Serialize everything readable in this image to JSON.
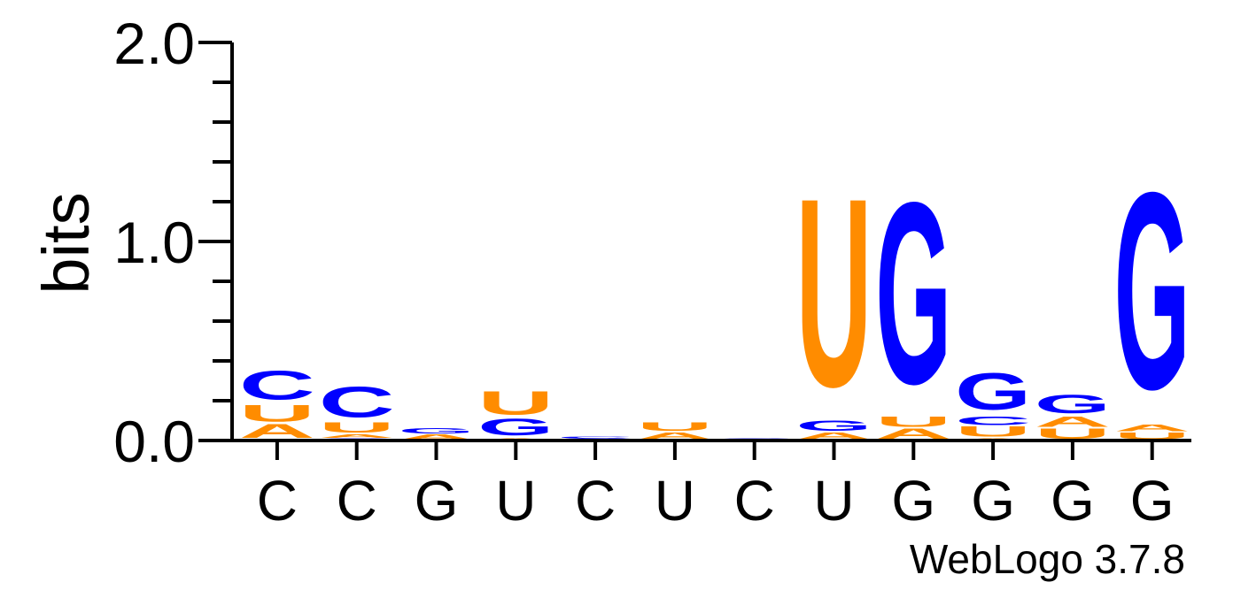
{
  "chart_data": {
    "type": "sequence-logo",
    "ylabel": "bits",
    "ylim": [
      0,
      2
    ],
    "yticks": [
      "0.0",
      "1.0",
      "2.0"
    ],
    "positions": [
      "C",
      "C",
      "G",
      "U",
      "C",
      "U",
      "C",
      "U",
      "G",
      "G",
      "G",
      "G"
    ],
    "stacks": [
      [
        {
          "letter": "A",
          "bits": 0.08
        },
        {
          "letter": "U",
          "bits": 0.1
        },
        {
          "letter": "C",
          "bits": 0.17
        }
      ],
      [
        {
          "letter": "G",
          "bits": 0.01
        },
        {
          "letter": "A",
          "bits": 0.02
        },
        {
          "letter": "U",
          "bits": 0.06
        },
        {
          "letter": "C",
          "bits": 0.18
        }
      ],
      [
        {
          "letter": "A",
          "bits": 0.03
        },
        {
          "letter": "G",
          "bits": 0.03
        }
      ],
      [
        {
          "letter": "A",
          "bits": 0.01
        },
        {
          "letter": "G",
          "bits": 0.1
        },
        {
          "letter": "U",
          "bits": 0.14
        }
      ],
      [
        {
          "letter": "G",
          "bits": 0.01
        },
        {
          "letter": "C",
          "bits": 0.01
        }
      ],
      [
        {
          "letter": "A",
          "bits": 0.04
        },
        {
          "letter": "U",
          "bits": 0.05
        }
      ],
      [
        {
          "letter": "C",
          "bits": 0.01
        }
      ],
      [
        {
          "letter": "A",
          "bits": 0.04
        },
        {
          "letter": "G",
          "bits": 0.06
        },
        {
          "letter": "U",
          "bits": 1.12
        }
      ],
      [
        {
          "letter": "A",
          "bits": 0.06
        },
        {
          "letter": "U",
          "bits": 0.06
        },
        {
          "letter": "G",
          "bits": 1.08
        }
      ],
      [
        {
          "letter": "A",
          "bits": 0.01
        },
        {
          "letter": "U",
          "bits": 0.06
        },
        {
          "letter": "C",
          "bits": 0.05
        },
        {
          "letter": "G",
          "bits": 0.22
        }
      ],
      [
        {
          "letter": "U",
          "bits": 0.06
        },
        {
          "letter": "A",
          "bits": 0.06
        },
        {
          "letter": "G",
          "bits": 0.11
        }
      ],
      [
        {
          "letter": "U",
          "bits": 0.04
        },
        {
          "letter": "A",
          "bits": 0.04
        },
        {
          "letter": "G",
          "bits": 1.17
        }
      ]
    ],
    "colors": {
      "A": "#ff8c00",
      "U": "#ff8c00",
      "C": "#0000ff",
      "G": "#0000ff"
    },
    "grid": false
  },
  "credit": "WebLogo 3.7.8"
}
